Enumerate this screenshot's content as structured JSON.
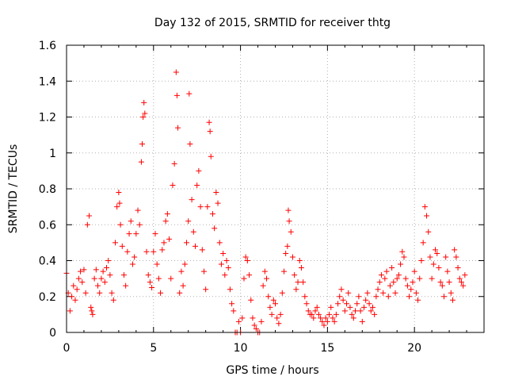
{
  "chart_data": {
    "type": "scatter",
    "title": "Day 132 of 2015, SRMTID for receiver thtg",
    "xlabel": "GPS time / hours",
    "ylabel": "SRMTID / TECUs",
    "xlim": [
      0,
      24
    ],
    "ylim": [
      0,
      1.6
    ],
    "x_ticks": [
      0,
      5,
      10,
      15,
      20
    ],
    "x_tick_labels": [
      "0",
      "5",
      "10",
      "15",
      "20"
    ],
    "y_ticks": [
      0,
      0.2,
      0.4,
      0.6,
      0.8,
      1.0,
      1.2,
      1.4,
      1.6
    ],
    "y_tick_labels": [
      "0",
      "0.2",
      "0.4",
      "0.6",
      "0.8",
      "1",
      "1.2",
      "1.4",
      "1.6"
    ],
    "grid": true,
    "grid_style": "dotted",
    "marker": "plus",
    "marker_color": "#ff0000",
    "series": [
      {
        "name": "thtg",
        "x": [
          0.0,
          0.1,
          0.2,
          0.3,
          0.4,
          0.5,
          0.6,
          0.7,
          0.8,
          0.9,
          1.0,
          1.1,
          1.2,
          1.3,
          1.4,
          1.45,
          1.5,
          1.6,
          1.7,
          1.8,
          1.9,
          2.0,
          2.1,
          2.2,
          2.3,
          2.4,
          2.5,
          2.6,
          2.7,
          2.8,
          2.9,
          3.0,
          3.05,
          3.1,
          3.2,
          3.3,
          3.4,
          3.5,
          3.6,
          3.7,
          3.8,
          3.9,
          4.0,
          4.1,
          4.2,
          4.3,
          4.35,
          4.4,
          4.45,
          4.5,
          4.6,
          4.7,
          4.8,
          4.9,
          5.0,
          5.1,
          5.2,
          5.3,
          5.4,
          5.5,
          5.6,
          5.7,
          5.8,
          5.9,
          6.0,
          6.1,
          6.2,
          6.3,
          6.35,
          6.4,
          6.5,
          6.6,
          6.7,
          6.8,
          6.9,
          7.0,
          7.05,
          7.1,
          7.2,
          7.3,
          7.4,
          7.5,
          7.6,
          7.7,
          7.8,
          7.9,
          8.0,
          8.1,
          8.2,
          8.25,
          8.3,
          8.4,
          8.5,
          8.6,
          8.7,
          8.8,
          8.9,
          9.0,
          9.1,
          9.2,
          9.3,
          9.4,
          9.5,
          9.6,
          9.7,
          9.8,
          9.9,
          10.0,
          10.1,
          10.2,
          10.3,
          10.4,
          10.5,
          10.6,
          10.7,
          10.8,
          10.9,
          11.0,
          11.1,
          11.2,
          11.3,
          11.4,
          11.5,
          11.6,
          11.7,
          11.8,
          11.9,
          12.0,
          12.1,
          12.2,
          12.3,
          12.4,
          12.5,
          12.6,
          12.7,
          12.75,
          12.8,
          12.9,
          13.0,
          13.1,
          13.2,
          13.3,
          13.4,
          13.5,
          13.6,
          13.7,
          13.8,
          13.9,
          14.0,
          14.1,
          14.2,
          14.3,
          14.4,
          14.5,
          14.6,
          14.7,
          14.8,
          14.9,
          15.0,
          15.1,
          15.2,
          15.3,
          15.4,
          15.5,
          15.6,
          15.7,
          15.8,
          15.9,
          16.0,
          16.1,
          16.2,
          16.3,
          16.4,
          16.5,
          16.6,
          16.7,
          16.8,
          16.9,
          17.0,
          17.1,
          17.2,
          17.3,
          17.4,
          17.5,
          17.6,
          17.7,
          17.8,
          17.9,
          18.0,
          18.1,
          18.2,
          18.3,
          18.4,
          18.5,
          18.6,
          18.7,
          18.8,
          18.9,
          19.0,
          19.1,
          19.2,
          19.3,
          19.4,
          19.5,
          19.6,
          19.7,
          19.8,
          19.9,
          20.0,
          20.1,
          20.2,
          20.3,
          20.4,
          20.5,
          20.6,
          20.7,
          20.8,
          20.9,
          21.0,
          21.1,
          21.2,
          21.3,
          21.4,
          21.5,
          21.6,
          21.7,
          21.8,
          21.9,
          22.0,
          22.1,
          22.2,
          22.3,
          22.4,
          22.5,
          22.6,
          22.7,
          22.8,
          22.9
        ],
        "y": [
          0.33,
          0.22,
          0.12,
          0.2,
          0.26,
          0.18,
          0.24,
          0.3,
          0.34,
          0.28,
          0.35,
          0.22,
          0.6,
          0.65,
          0.14,
          0.12,
          0.1,
          0.3,
          0.35,
          0.26,
          0.22,
          0.3,
          0.34,
          0.28,
          0.36,
          0.4,
          0.32,
          0.22,
          0.18,
          0.5,
          0.7,
          0.78,
          0.72,
          0.6,
          0.48,
          0.32,
          0.26,
          0.45,
          0.55,
          0.62,
          0.38,
          0.42,
          0.55,
          0.68,
          0.6,
          0.95,
          1.05,
          1.2,
          1.28,
          1.22,
          0.45,
          0.32,
          0.28,
          0.25,
          0.45,
          0.55,
          0.38,
          0.3,
          0.22,
          0.46,
          0.5,
          0.62,
          0.66,
          0.52,
          0.3,
          0.82,
          0.94,
          1.45,
          1.32,
          1.14,
          0.22,
          0.34,
          0.26,
          0.38,
          0.5,
          0.62,
          1.33,
          1.05,
          0.74,
          0.56,
          0.48,
          0.82,
          0.9,
          0.7,
          0.46,
          0.34,
          0.24,
          0.7,
          1.17,
          1.12,
          0.98,
          0.66,
          0.58,
          0.78,
          0.72,
          0.5,
          0.38,
          0.44,
          0.32,
          0.4,
          0.36,
          0.24,
          0.16,
          0.12,
          0.0,
          0.0,
          0.06,
          0.0,
          0.08,
          0.3,
          0.42,
          0.4,
          0.32,
          0.18,
          0.08,
          0.04,
          0.02,
          0.0,
          0.0,
          0.06,
          0.26,
          0.34,
          0.3,
          0.2,
          0.14,
          0.1,
          0.18,
          0.16,
          0.08,
          0.05,
          0.1,
          0.22,
          0.34,
          0.44,
          0.48,
          0.68,
          0.62,
          0.56,
          0.42,
          0.32,
          0.24,
          0.28,
          0.4,
          0.36,
          0.28,
          0.2,
          0.16,
          0.12,
          0.1,
          0.1,
          0.08,
          0.12,
          0.14,
          0.1,
          0.08,
          0.06,
          0.04,
          0.08,
          0.06,
          0.1,
          0.14,
          0.08,
          0.06,
          0.1,
          0.16,
          0.2,
          0.24,
          0.18,
          0.12,
          0.16,
          0.22,
          0.14,
          0.1,
          0.08,
          0.12,
          0.16,
          0.2,
          0.12,
          0.06,
          0.14,
          0.18,
          0.22,
          0.16,
          0.12,
          0.14,
          0.1,
          0.2,
          0.24,
          0.28,
          0.32,
          0.22,
          0.3,
          0.34,
          0.2,
          0.26,
          0.36,
          0.28,
          0.22,
          0.3,
          0.32,
          0.38,
          0.45,
          0.42,
          0.3,
          0.26,
          0.2,
          0.24,
          0.28,
          0.34,
          0.22,
          0.18,
          0.3,
          0.4,
          0.5,
          0.7,
          0.65,
          0.56,
          0.42,
          0.3,
          0.38,
          0.46,
          0.44,
          0.36,
          0.28,
          0.26,
          0.2,
          0.42,
          0.34,
          0.28,
          0.22,
          0.18,
          0.46,
          0.42,
          0.36,
          0.3,
          0.28,
          0.26,
          0.32
        ]
      }
    ]
  }
}
